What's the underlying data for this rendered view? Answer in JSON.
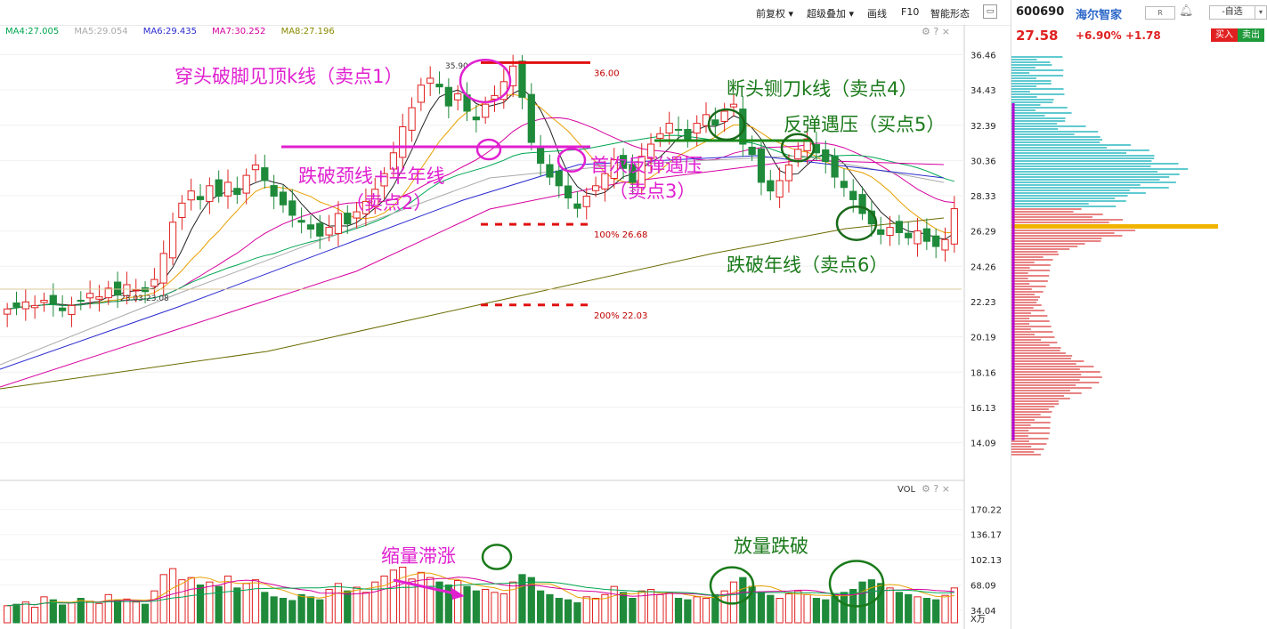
{
  "toolbar": {
    "items": [
      "前复权 ▾",
      "超级叠加 ▾",
      "画线",
      "F10",
      "智能形态"
    ],
    "window_buttons": [
      "▭",
      "▭"
    ]
  },
  "ma_legend": [
    {
      "label": "MA4:27.005",
      "color": "#00a651"
    },
    {
      "label": "MA5:29.054",
      "color": "#aaaaaa"
    },
    {
      "label": "MA6:29.435",
      "color": "#2b2bd0"
    },
    {
      "label": "MA7:30.252",
      "color": "#d6009e"
    },
    {
      "label": "MA8:27.196",
      "color": "#8a8a00"
    }
  ],
  "panel_icons": {
    "gear": "⚙",
    "help": "?",
    "close": "×"
  },
  "stock": {
    "code": "600690",
    "name": "海尔智家",
    "r_label": "R",
    "select_label": "-自选",
    "select_arrow": "▾",
    "price": "27.58",
    "pct": "+6.90%",
    "change": "+1.78",
    "buy": "买入",
    "sell": "卖出"
  },
  "chart_data": [
    {
      "type": "candlestick",
      "name": "price",
      "y_ticks": [
        36.46,
        34.43,
        32.39,
        30.36,
        28.33,
        26.29,
        24.26,
        22.23,
        20.19,
        18.16,
        16.13,
        14.09
      ],
      "ylim": [
        13.2,
        37.3
      ],
      "close_series": [
        21.8,
        21.9,
        22.2,
        22.0,
        22.3,
        22.1,
        21.7,
        22.0,
        22.3,
        22.7,
        22.5,
        23.0,
        22.6,
        23.2,
        22.9,
        22.8,
        23.5,
        25.0,
        26.8,
        27.9,
        28.6,
        28.1,
        28.9,
        28.3,
        29.1,
        28.4,
        29.5,
        30.1,
        29.2,
        28.3,
        27.8,
        27.2,
        26.8,
        26.4,
        26.0,
        26.5,
        27.3,
        26.7,
        27.4,
        28.0,
        28.7,
        29.6,
        30.8,
        32.3,
        33.4,
        34.7,
        35.1,
        34.6,
        33.5,
        34.2,
        33.2,
        32.7,
        33.6,
        34.1,
        34.9,
        35.8,
        34.0,
        31.4,
        30.2,
        29.4,
        28.9,
        28.2,
        27.6,
        28.3,
        28.9,
        29.6,
        30.4,
        29.9,
        29.1,
        30.6,
        31.3,
        31.9,
        32.5,
        32.1,
        31.6,
        32.5,
        33.0,
        32.4,
        33.2,
        33.6,
        31.3,
        30.7,
        29.1,
        28.6,
        29.2,
        30.1,
        31.0,
        31.6,
        30.8,
        30.3,
        29.4,
        28.8,
        28.1,
        27.3,
        26.7,
        26.1,
        26.5,
        26.2,
        25.9,
        26.3,
        25.7,
        25.4,
        25.8,
        27.58
      ],
      "ma_lines": [
        {
          "name": "MA4",
          "values_at": {
            "end": 27.005
          }
        },
        {
          "name": "MA5",
          "values_at": {
            "end": 29.054
          }
        },
        {
          "name": "MA6",
          "values_at": {
            "end": 29.435
          }
        },
        {
          "name": "MA7",
          "values_at": {
            "end": 30.252
          }
        },
        {
          "name": "MA8",
          "values_at": {
            "end": 27.196
          }
        }
      ],
      "high_label": "35.90",
      "low_label": "23.03-23.08",
      "levels": [
        {
          "label": "36.00",
          "value": 36.0
        },
        {
          "label": "100% 26.68",
          "value": 26.68
        },
        {
          "label": "200% 22.03",
          "value": 22.03
        }
      ]
    },
    {
      "type": "bar",
      "name": "VOL",
      "title": "VOL",
      "y_ticks": [
        170.22,
        136.17,
        102.13,
        68.09,
        34.04
      ],
      "unit": "X万",
      "ylim": [
        17,
        185
      ],
      "values": [
        40,
        42,
        45,
        38,
        52,
        48,
        41,
        44,
        50,
        46,
        43,
        55,
        47,
        49,
        45,
        42,
        60,
        82,
        90,
        75,
        78,
        68,
        72,
        66,
        80,
        64,
        70,
        75,
        58,
        52,
        50,
        47,
        55,
        52,
        48,
        62,
        70,
        60,
        65,
        58,
        72,
        80,
        88,
        92,
        76,
        85,
        78,
        72,
        68,
        74,
        66,
        60,
        62,
        58,
        56,
        72,
        82,
        78,
        60,
        55,
        50,
        48,
        44,
        52,
        50,
        55,
        66,
        58,
        50,
        60,
        62,
        55,
        58,
        50,
        48,
        52,
        50,
        55,
        60,
        72,
        78,
        66,
        58,
        54,
        50,
        56,
        60,
        55,
        50,
        48,
        55,
        58,
        62,
        72,
        75,
        70,
        64,
        58,
        55,
        52,
        50,
        48,
        54,
        64
      ]
    }
  ],
  "annotations": {
    "sell1": "穿头破脚见顶k线（卖点1）",
    "sell2a": "跌破颈线+半年线",
    "sell2b": "（卖点2）",
    "sell3a": "首次反弹遇压",
    "sell3b": "（卖点3）",
    "sell4": "断头铡刀k线（卖点4）",
    "buy5": "反弹遇压（买点5）",
    "sell6": "跌破年线（卖点6）",
    "vol1": "缩量滞涨",
    "vol2": "放量跌破"
  }
}
